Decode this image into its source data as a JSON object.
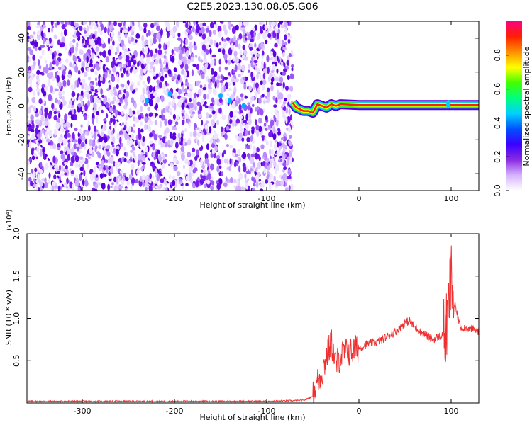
{
  "title": "C2E5.2023.130.08.05.G06",
  "chart_data": [
    {
      "type": "heatmap",
      "xlabel": "Height of straight line (km)",
      "ylabel": "Frequency (Hz)",
      "xlim": [
        -360,
        130
      ],
      "ylim": [
        -50,
        50
      ],
      "xticks": [
        -300,
        -200,
        -100,
        0,
        100
      ],
      "yticks": [
        -40,
        -20,
        0,
        20,
        40
      ],
      "colorbar": {
        "label": "Normalized spectral amplitude",
        "range": [
          0,
          1
        ],
        "ticks": [
          0.0,
          0.2,
          0.4,
          0.6,
          0.8
        ],
        "colormap": [
          "#ffffff",
          "#d6b3ff",
          "#8a2be2",
          "#3a00ff",
          "#0050ff",
          "#00d0ff",
          "#00ff80",
          "#40ff00",
          "#ffff00",
          "#ff9000",
          "#ff2000",
          "#ff0080"
        ]
      },
      "noise_region": {
        "x_range": [
          -360,
          -72
        ],
        "color": "#7a1cf0"
      },
      "line_path": [
        [
          -72,
          2
        ],
        [
          -68,
          -1
        ],
        [
          -60,
          -3
        ],
        [
          -55,
          -3
        ],
        [
          -50,
          -4
        ],
        [
          -45,
          1
        ],
        [
          -40,
          0
        ],
        [
          -35,
          -1
        ],
        [
          -30,
          1
        ],
        [
          -25,
          0
        ],
        [
          -20,
          1
        ],
        [
          0,
          0.5
        ],
        [
          130,
          0.5
        ]
      ]
    },
    {
      "type": "line",
      "xlabel": "Height of straight line (km)",
      "ylabel": "SNR (10 * v/v)",
      "multiplier": "(x10⁴)",
      "xlim": [
        -360,
        130
      ],
      "ylim": [
        0,
        2.0
      ],
      "xticks": [
        -300,
        -200,
        -100,
        0,
        100
      ],
      "yticks": [
        0.5,
        1.0,
        1.5,
        2.0
      ],
      "ytick_labels": [
        "0.5",
        "1.0",
        "1.5",
        "2.0"
      ],
      "color": "#ee3030",
      "series": [
        {
          "x": [
            -360,
            -300,
            -200,
            -100,
            -60,
            -50,
            -45,
            -40,
            -35,
            -30,
            -25,
            -20,
            -15,
            -10,
            -5,
            0,
            10,
            20,
            30,
            40,
            50,
            55,
            60,
            70,
            80,
            90,
            95,
            100,
            103,
            110,
            120,
            130
          ],
          "y": [
            0.02,
            0.02,
            0.02,
            0.02,
            0.03,
            0.08,
            0.25,
            0.35,
            0.55,
            0.72,
            0.45,
            0.55,
            0.6,
            0.6,
            0.62,
            0.65,
            0.7,
            0.72,
            0.78,
            0.85,
            0.95,
            0.97,
            0.9,
            0.82,
            0.75,
            0.8,
            0.85,
            1.5,
            1.2,
            0.9,
            0.88,
            0.85
          ]
        }
      ]
    }
  ]
}
